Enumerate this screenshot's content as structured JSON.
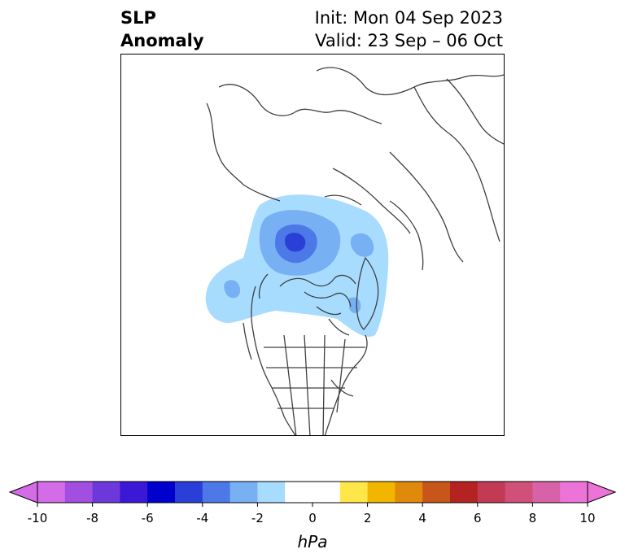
{
  "title": {
    "left_line1": "SLP",
    "left_line2": "Anomaly",
    "right_line1": "Init: Mon 04 Sep 2023",
    "right_line2": "Valid: 23 Sep – 06 Oct"
  },
  "colorbar": {
    "label": "hPa",
    "ticks": [
      "-10",
      "-8",
      "-6",
      "-4",
      "-2",
      "0",
      "2",
      "4",
      "6",
      "8",
      "10"
    ],
    "min": -10,
    "max": 10,
    "extend": "both",
    "colors": [
      "#d46ce8",
      "#a24ee0",
      "#6c38dc",
      "#3b18d6",
      "#0000cc",
      "#2a3fd8",
      "#4d78e8",
      "#78b0f4",
      "#a8dcff",
      "#ffffff",
      "#ffffff",
      "#ffe74a",
      "#f2b500",
      "#e08a0c",
      "#c8551a",
      "#b42222",
      "#c23a54",
      "#d0507a",
      "#d862a8",
      "#ec74d8"
    ]
  },
  "map": {
    "projection": "north-polar-stereographic",
    "feature": "negative SLP anomaly centered over the Arctic Ocean north of Alaska/Canada",
    "coastline_color": "#404040"
  }
}
